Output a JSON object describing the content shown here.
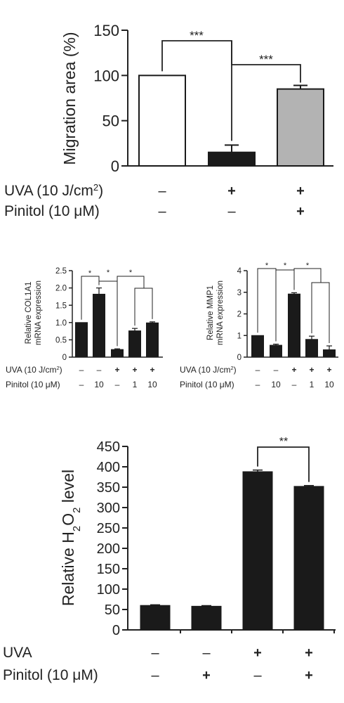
{
  "chart_data": [
    {
      "type": "bar",
      "ylabel": "Migration area (%)",
      "ylim": [
        0,
        150
      ],
      "yticks": [
        "0",
        "50",
        "100",
        "150"
      ],
      "values": [
        100,
        15,
        85
      ],
      "errors": [
        0,
        8,
        4
      ],
      "bar_colors": [
        "#ffffff",
        "#1a1a1a",
        "#b3b3b3"
      ],
      "conditions": [
        {
          "label": "UVA (10 J/cm²)",
          "cells": [
            "–",
            "+",
            "+"
          ]
        },
        {
          "label": "Pinitol (10 μM)",
          "cells": [
            "–",
            "–",
            "+"
          ]
        }
      ],
      "significance": [
        {
          "from": 0,
          "to": 1,
          "label": "***"
        },
        {
          "from": 1,
          "to": 2,
          "label": "***"
        }
      ]
    },
    {
      "type": "bar",
      "ylabel": [
        "Relative COL1A1",
        "mRNA expression"
      ],
      "ylim": [
        0,
        2.5
      ],
      "yticks": [
        "0",
        "0.5",
        "1.0",
        "1.5",
        "2.0",
        "2.5"
      ],
      "values": [
        1.0,
        1.82,
        0.22,
        0.76,
        0.99
      ],
      "errors": [
        0,
        0.18,
        0.02,
        0.07,
        0.03
      ],
      "conditions": [
        {
          "label": "UVA (10 J/cm²)",
          "cells": [
            "–",
            "–",
            "+",
            "+",
            "+"
          ]
        },
        {
          "label": "Pinitol (10 μM)",
          "cells": [
            "–",
            "10",
            "–",
            "1",
            "10"
          ]
        }
      ],
      "significance": [
        "*",
        "*",
        "*"
      ]
    },
    {
      "type": "bar",
      "ylabel": [
        "Relative MMP1",
        "mRNA expression"
      ],
      "ylim": [
        0,
        4
      ],
      "yticks": [
        "0",
        "1",
        "2",
        "3",
        "4"
      ],
      "values": [
        1.0,
        0.55,
        2.92,
        0.82,
        0.34
      ],
      "errors": [
        0,
        0.05,
        0.06,
        0.15,
        0.18
      ],
      "conditions": [
        {
          "label": "UVA (10 J/cm²)",
          "cells": [
            "–",
            "–",
            "+",
            "+",
            "+"
          ]
        },
        {
          "label": "Pinitol (10 μM)",
          "cells": [
            "–",
            "10",
            "–",
            "1",
            "10"
          ]
        }
      ],
      "significance": [
        "*",
        "*",
        "*"
      ]
    },
    {
      "type": "bar",
      "ylabel": "Relative H2O2 level",
      "ylim": [
        0,
        450
      ],
      "yticks": [
        "0",
        "50",
        "100",
        "150",
        "200",
        "250",
        "300",
        "350",
        "400",
        "450"
      ],
      "values": [
        60,
        58,
        388,
        352
      ],
      "errors": [
        1.5,
        1.5,
        4,
        2
      ],
      "conditions": [
        {
          "label": "UVA",
          "cells": [
            "–",
            "–",
            "+",
            "+"
          ]
        },
        {
          "label": "Pinitol (10 μM)",
          "cells": [
            "–",
            "+",
            "–",
            "+"
          ]
        }
      ],
      "significance": [
        {
          "from": 2,
          "to": 3,
          "label": "**"
        }
      ]
    }
  ]
}
